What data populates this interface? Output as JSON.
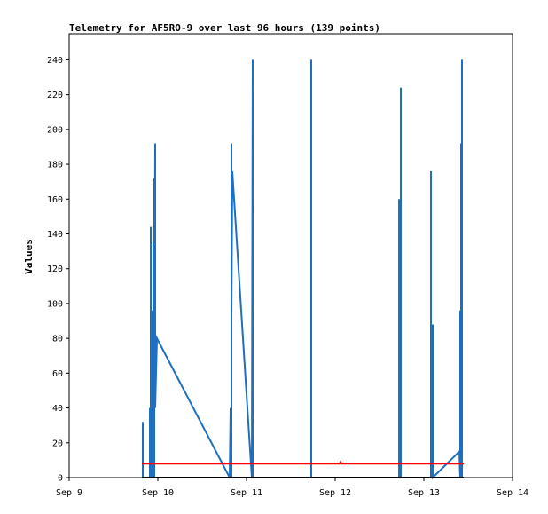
{
  "chart_data": {
    "type": "line",
    "title": "Telemetry for AF5RO-9 over last 96 hours (139 points)",
    "xlabel": "",
    "ylabel": "Values",
    "xlim": [
      9,
      14
    ],
    "ylim": [
      0,
      255
    ],
    "x_ticks": [
      9,
      10,
      11,
      12,
      13,
      14
    ],
    "x_tick_labels": [
      "Sep 9",
      "Sep 10",
      "Sep 11",
      "Sep 12",
      "Sep 13",
      "Sep 14"
    ],
    "y_ticks": [
      0,
      20,
      40,
      60,
      80,
      100,
      120,
      140,
      160,
      180,
      200,
      220,
      240
    ],
    "y_tick_labels": [
      "0",
      "20",
      "40",
      "60",
      "80",
      "100",
      "120",
      "140",
      "160",
      "180",
      "200",
      "220",
      "240"
    ],
    "grid": false,
    "legend": "none",
    "series": [
      {
        "color": "#1f6fbf",
        "points": [
          [
            9.83,
            0
          ],
          [
            9.83,
            32
          ],
          [
            9.83,
            0
          ],
          [
            9.91,
            0
          ],
          [
            9.91,
            40
          ],
          [
            9.91,
            0
          ],
          [
            9.92,
            0
          ],
          [
            9.92,
            144
          ],
          [
            9.92,
            0
          ],
          [
            9.94,
            0
          ],
          [
            9.94,
            96
          ],
          [
            9.94,
            0
          ],
          [
            9.95,
            0
          ],
          [
            9.95,
            135
          ],
          [
            9.95,
            0
          ],
          [
            9.96,
            0
          ],
          [
            9.96,
            172
          ],
          [
            9.96,
            58
          ],
          [
            9.97,
            192
          ],
          [
            9.97,
            40
          ],
          [
            9.99,
            80
          ],
          [
            10.81,
            0
          ],
          [
            10.82,
            40
          ],
          [
            10.82,
            0
          ],
          [
            10.83,
            0
          ],
          [
            10.83,
            192
          ],
          [
            10.83,
            90
          ],
          [
            10.84,
            176
          ],
          [
            11.06,
            0
          ],
          [
            11.07,
            240
          ],
          [
            11.07,
            0
          ],
          [
            11.73,
            0
          ],
          [
            11.73,
            240
          ],
          [
            11.73,
            0
          ],
          [
            12.72,
            0
          ],
          [
            12.72,
            160
          ],
          [
            12.72,
            0
          ],
          [
            12.74,
            0
          ],
          [
            12.74,
            224
          ],
          [
            12.74,
            0
          ],
          [
            13.08,
            0
          ],
          [
            13.08,
            176
          ],
          [
            13.08,
            0
          ],
          [
            13.1,
            0
          ],
          [
            13.1,
            88
          ],
          [
            13.1,
            0
          ],
          [
            13.4,
            15
          ],
          [
            13.41,
            0
          ],
          [
            13.41,
            96
          ],
          [
            13.41,
            0
          ],
          [
            13.42,
            0
          ],
          [
            13.42,
            192
          ],
          [
            13.42,
            0
          ],
          [
            13.43,
            0
          ],
          [
            13.43,
            240
          ],
          [
            13.43,
            0
          ]
        ]
      },
      {
        "color": "#000000",
        "points": [
          [
            9.82,
            0
          ],
          [
            13.45,
            0
          ]
        ]
      },
      {
        "color": "#ff0000",
        "points": [
          [
            9.82,
            8
          ],
          [
            12.05,
            8
          ],
          [
            12.06,
            9
          ],
          [
            12.07,
            8
          ],
          [
            13.45,
            8
          ]
        ]
      }
    ]
  }
}
